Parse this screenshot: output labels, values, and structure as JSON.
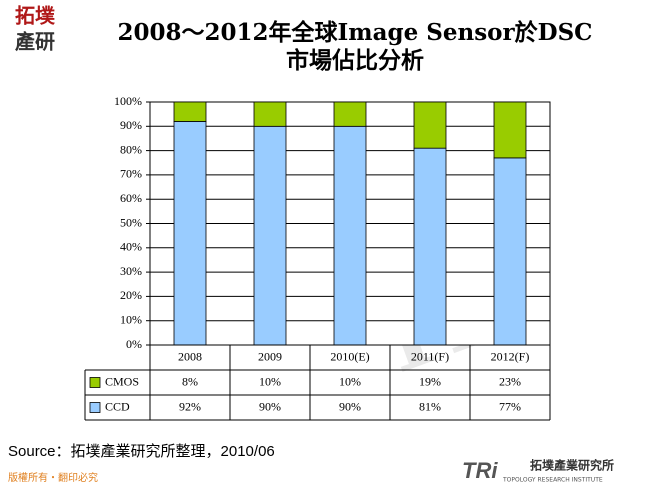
{
  "logo": {
    "line1": "拓墣",
    "line2": "產研"
  },
  "source": "Source：拓墣產業研究所整理，2010/06",
  "footer": "版權所有・翻印必究",
  "brand": {
    "mark": "TRi",
    "name": "拓墣產業研究所",
    "english": "TOPOLOGY RESEARCH INSTITUTE"
  },
  "chart_data": {
    "type": "stacked_bar",
    "title": [
      "2008～2012年全球Image Sensor於DSC",
      "市場佔比分析"
    ],
    "categories": [
      "2008",
      "2009",
      "2010(E)",
      "2011(F)",
      "2012(F)"
    ],
    "series": [
      {
        "name": "CCD",
        "color": "#99ccff",
        "values": [
          92,
          90,
          90,
          81,
          77
        ],
        "value_labels": [
          "92%",
          "90%",
          "90%",
          "81%",
          "77%"
        ]
      },
      {
        "name": "CMOS",
        "color": "#99cc00",
        "values": [
          8,
          10,
          10,
          19,
          23
        ],
        "value_labels": [
          "8%",
          "10%",
          "10%",
          "19%",
          "23%"
        ]
      }
    ],
    "ylim": [
      0,
      100
    ],
    "yticks": [
      {
        "value": 0,
        "label": "0%"
      },
      {
        "value": 10,
        "label": "10%"
      },
      {
        "value": 20,
        "label": "20%"
      },
      {
        "value": 30,
        "label": "30%"
      },
      {
        "value": 40,
        "label": "40%"
      },
      {
        "value": 50,
        "label": "50%"
      },
      {
        "value": 60,
        "label": "60%"
      },
      {
        "value": 70,
        "label": "70%"
      },
      {
        "value": 80,
        "label": "80%"
      },
      {
        "value": 90,
        "label": "90%"
      },
      {
        "value": 100,
        "label": "100%"
      }
    ],
    "grid": true
  }
}
